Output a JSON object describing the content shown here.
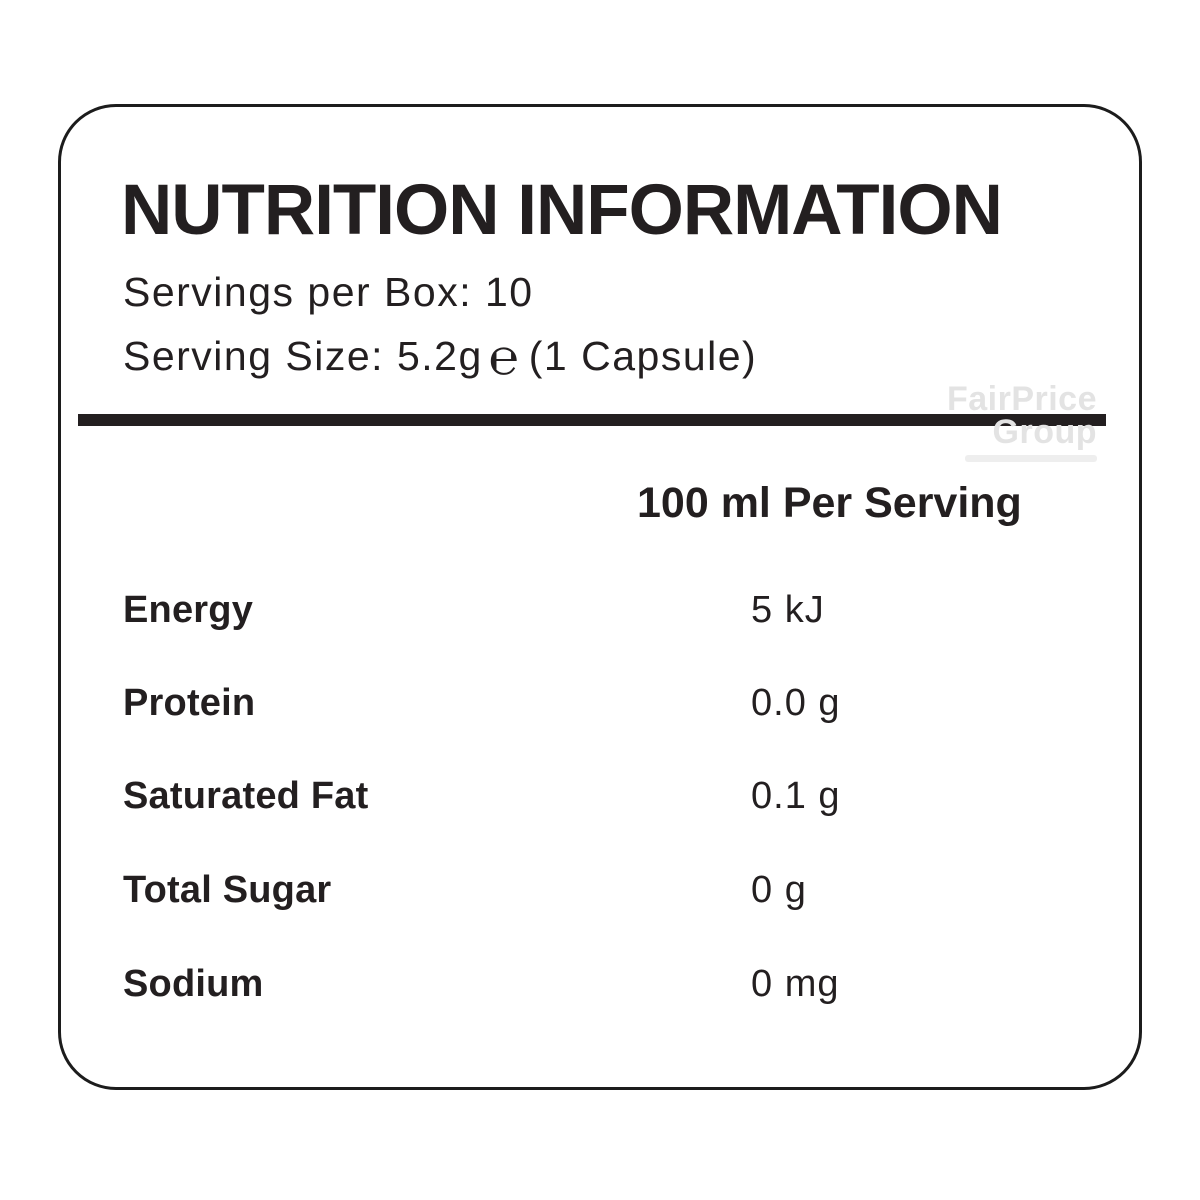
{
  "label": {
    "title": "NUTRITION INFORMATION",
    "servings_line": "Servings per Box: 10",
    "serving_size_prefix": "Serving Size: 5.2g",
    "estimated_sign": "℮",
    "serving_size_suffix": "(1 Capsule)",
    "column_header": "100 ml Per Serving",
    "rows": [
      {
        "name": "Energy",
        "value": "5 kJ"
      },
      {
        "name": "Protein",
        "value": "0.0 g"
      },
      {
        "name": "Saturated Fat",
        "value": "0.1 g"
      },
      {
        "name": "Total Sugar",
        "value": "0 g"
      },
      {
        "name": "Sodium",
        "value": "0 mg"
      }
    ],
    "colors": {
      "text": "#231f20",
      "border": "#1c1c1c",
      "divider": "#231f20",
      "watermark": "#e3e3e3",
      "background": "#ffffff"
    }
  },
  "watermark": {
    "line1": "FairPrice",
    "line2": "Group"
  }
}
